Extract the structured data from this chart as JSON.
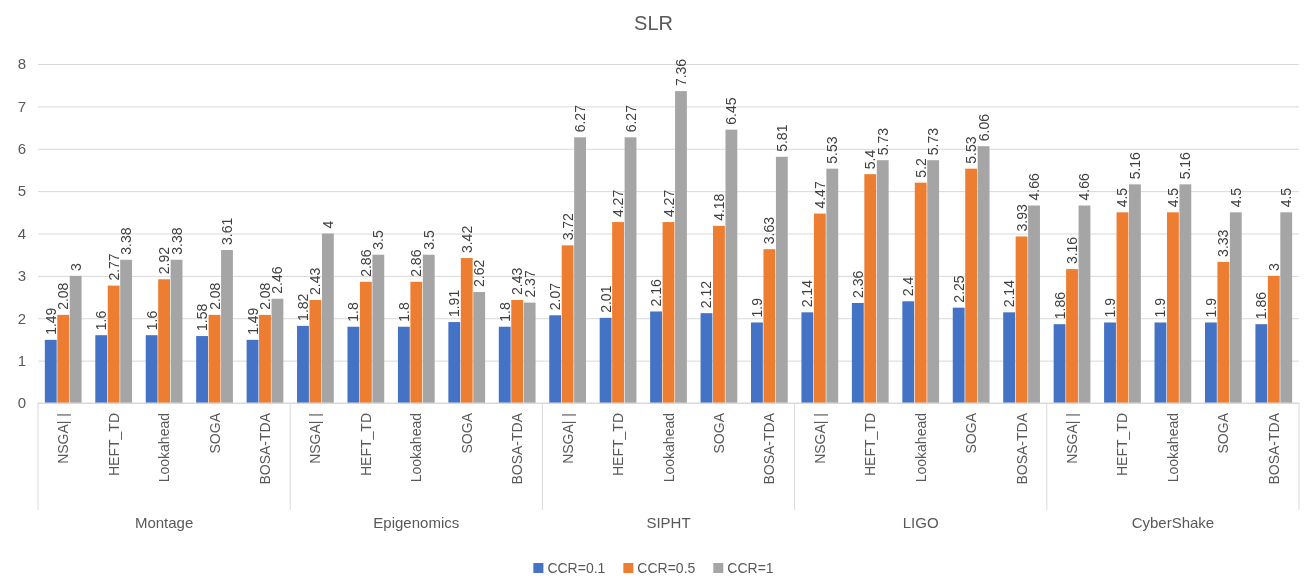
{
  "chart_data": {
    "type": "bar",
    "title": "SLR",
    "categories": [
      "NSGA| |",
      "HEFT_TD",
      "Lookahead",
      "SOGA",
      "BOSA-TDA",
      "NSGA| |",
      "HEFT_TD",
      "Lookahead",
      "SOGA",
      "BOSA-TDA",
      "NSGA| |",
      "HEFT_TD",
      "Lookahead",
      "SOGA",
      "BOSA-TDA",
      "NSGA| |",
      "HEFT_TD",
      "Lookahead",
      "SOGA",
      "BOSA-TDA",
      "NSGA| |",
      "HEFT_TD",
      "Lookahead",
      "SOGA",
      "BOSA-TDA"
    ],
    "annotations": [
      "Montage",
      "Epigenomics",
      "SIPHT",
      "LIGO",
      "CyberShake"
    ],
    "series": [
      {
        "name": "CCR=0.1",
        "color": "#4472c4",
        "values": [
          1.49,
          1.6,
          1.6,
          1.58,
          1.49,
          1.82,
          1.8,
          1.8,
          1.91,
          1.8,
          2.07,
          2.01,
          2.16,
          2.12,
          1.9,
          2.14,
          2.36,
          2.4,
          2.25,
          2.14,
          1.86,
          1.9,
          1.9,
          1.9,
          1.86
        ]
      },
      {
        "name": "CCR=0.5",
        "color": "#ed7d31",
        "values": [
          2.08,
          2.77,
          2.92,
          2.08,
          2.08,
          2.43,
          2.86,
          2.86,
          3.42,
          2.43,
          3.72,
          4.27,
          4.27,
          4.18,
          3.63,
          4.47,
          5.4,
          5.2,
          5.53,
          3.93,
          3.16,
          4.5,
          4.5,
          3.33,
          3
        ]
      },
      {
        "name": "CCR=1",
        "color": "#a5a5a5",
        "values": [
          3,
          3.38,
          3.38,
          3.61,
          2.46,
          4,
          3.5,
          3.5,
          2.62,
          2.37,
          6.27,
          6.27,
          7.36,
          6.45,
          5.81,
          5.53,
          5.73,
          5.73,
          6.06,
          4.66,
          4.66,
          5.16,
          5.16,
          4.5,
          4.5
        ]
      }
    ],
    "ylim": [
      0,
      8
    ],
    "yticks": [
      0,
      1,
      2,
      3,
      4,
      5,
      6,
      7,
      8
    ],
    "grid": "y",
    "legend": "bottom",
    "data_labels": true
  }
}
